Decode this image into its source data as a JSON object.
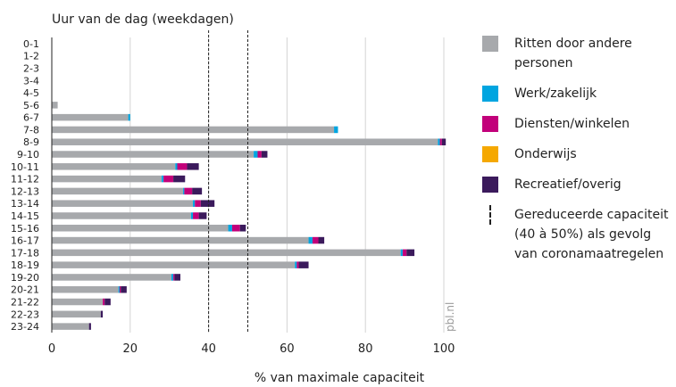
{
  "chart_data": {
    "type": "bar",
    "orientation": "horizontal",
    "stacked": true,
    "title": "Uur van de dag (weekdagen)",
    "xlabel": "% van maximale capaciteit",
    "ylabel": "",
    "xlim": [
      0,
      100
    ],
    "xticks": [
      0,
      20,
      40,
      60,
      80,
      100
    ],
    "grid": true,
    "watermark": "pbl.nl",
    "categories": [
      "0-1",
      "1-2",
      "2-3",
      "3-4",
      "4-5",
      "5-6",
      "6-7",
      "7-8",
      "8-9",
      "9-10",
      "10-11",
      "11-12",
      "12-13",
      "13-14",
      "14-15",
      "15-16",
      "16-17",
      "17-18",
      "18-19",
      "19-20",
      "20-21",
      "21-22",
      "22-23",
      "23-24"
    ],
    "series": [
      {
        "name": "Ritten door andere personen",
        "color": "#a7a9ac",
        "values": [
          0,
          0,
          0,
          0,
          0,
          1.5,
          19.5,
          72,
          98.5,
          51.5,
          31.5,
          28,
          33.5,
          36,
          35.5,
          45,
          65.5,
          89,
          62,
          30.5,
          17,
          13,
          12.5,
          9.5
        ]
      },
      {
        "name": "Werk/zakelijk",
        "color": "#00a5e0",
        "values": [
          0,
          0,
          0,
          0,
          0,
          0,
          0.5,
          1,
          0.5,
          1,
          0.5,
          0.5,
          0.3,
          0.5,
          0.5,
          1,
          1,
          0.5,
          0.5,
          0.5,
          0.3,
          0,
          0,
          0
        ]
      },
      {
        "name": "Diensten/winkelen",
        "color": "#c2007a",
        "values": [
          0,
          0,
          0,
          0,
          0,
          0,
          0,
          0,
          0.5,
          1,
          2.5,
          2.5,
          2,
          1.5,
          1.5,
          2,
          1.5,
          1,
          0.5,
          0.3,
          0.3,
          0.5,
          0,
          0
        ]
      },
      {
        "name": "Onderwijs",
        "color": "#f5a800",
        "values": [
          0,
          0,
          0,
          0,
          0,
          0,
          0,
          0,
          0,
          0,
          0,
          0,
          0,
          0,
          0,
          0,
          0,
          0,
          0,
          0,
          0,
          0,
          0,
          0
        ]
      },
      {
        "name": "Recreatief/overig",
        "color": "#3b1a5c",
        "values": [
          0,
          0,
          0,
          0,
          0,
          0,
          0,
          0,
          1,
          1.5,
          3,
          3,
          2.5,
          3.5,
          2,
          1.5,
          1.5,
          2,
          2.5,
          1.5,
          1.5,
          1.5,
          0.5,
          0.5
        ]
      }
    ],
    "reference_lines": [
      {
        "x": 40,
        "style": "dashed"
      },
      {
        "x": 50,
        "style": "dashed"
      }
    ],
    "legend": {
      "placement": "right",
      "items": [
        {
          "label_lines": [
            "Ritten door andere",
            "personen"
          ],
          "type": "swatch",
          "color": "#a7a9ac"
        },
        {
          "label_lines": [
            "Werk/zakelijk"
          ],
          "type": "swatch",
          "color": "#00a5e0"
        },
        {
          "label_lines": [
            "Diensten/winkelen"
          ],
          "type": "swatch",
          "color": "#c2007a"
        },
        {
          "label_lines": [
            "Onderwijs"
          ],
          "type": "swatch",
          "color": "#f5a800"
        },
        {
          "label_lines": [
            "Recreatief/overig"
          ],
          "type": "swatch",
          "color": "#3b1a5c"
        },
        {
          "label_lines": [
            "Gereduceerde capaciteit",
            "(40 à 50%) als gevolg",
            "van coronamaatregelen"
          ],
          "type": "dashed-line",
          "color": "#222222"
        }
      ]
    }
  }
}
